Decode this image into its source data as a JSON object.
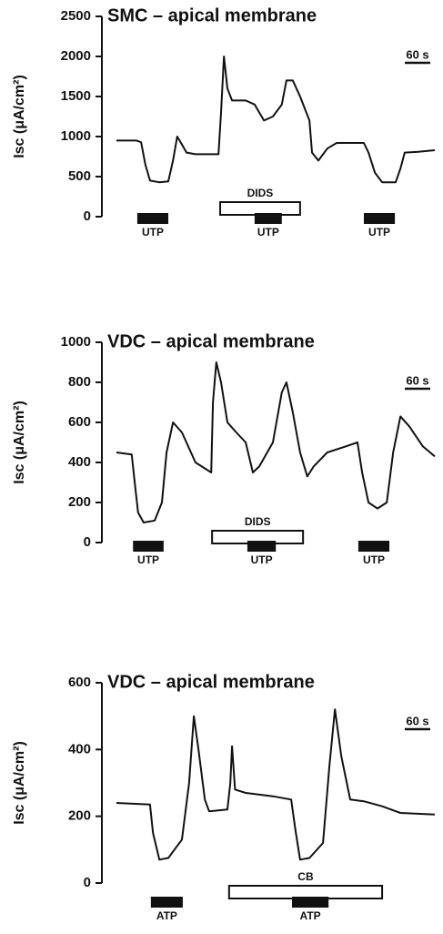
{
  "chart_data": [
    {
      "type": "line",
      "title": "SMC – apical membrane",
      "y_label": "Isc (μA/cm²)",
      "color": "#111111",
      "xlim": [
        0,
        750
      ],
      "ylim": [
        0,
        2500
      ],
      "yticks": [
        0,
        500,
        1000,
        1500,
        2000,
        2500
      ],
      "x": [
        0,
        47,
        58,
        68,
        79,
        101,
        122,
        133,
        143,
        154,
        165,
        186,
        240,
        246,
        253,
        261,
        272,
        304,
        325,
        347,
        368,
        389,
        400,
        415,
        432,
        454,
        460,
        475,
        496,
        518,
        582,
        593,
        608,
        625,
        657,
        668,
        678,
        710,
        749
      ],
      "values": [
        950,
        950,
        930,
        650,
        450,
        430,
        440,
        700,
        1000,
        900,
        800,
        780,
        780,
        1300,
        2000,
        1600,
        1450,
        1450,
        1400,
        1200,
        1250,
        1400,
        1700,
        1700,
        1500,
        1200,
        800,
        700,
        850,
        920,
        920,
        800,
        550,
        430,
        430,
        600,
        800,
        810,
        830
      ],
      "annotations": [
        {
          "label": "UTP",
          "start": 49,
          "end": 122,
          "style": "filled"
        },
        {
          "label": "DIDS",
          "start": 244,
          "end": 432,
          "style": "open"
        },
        {
          "label": "UTP",
          "start": 325,
          "end": 389,
          "style": "filled"
        },
        {
          "label": "UTP",
          "start": 582,
          "end": 655,
          "style": "filled"
        }
      ],
      "scale_bar": {
        "label": "60 s",
        "length": 60
      }
    },
    {
      "type": "line",
      "title": "VDC – apical membrane",
      "y_label": "Isc (μA/cm²)",
      "color": "#111111",
      "xlim": [
        0,
        750
      ],
      "ylim": [
        0,
        1000
      ],
      "yticks": [
        0,
        200,
        400,
        600,
        800,
        1000
      ],
      "x": [
        0,
        36,
        43,
        51,
        64,
        90,
        107,
        118,
        133,
        154,
        186,
        223,
        227,
        235,
        246,
        261,
        282,
        304,
        321,
        336,
        368,
        389,
        400,
        415,
        432,
        449,
        464,
        496,
        539,
        567,
        578,
        593,
        614,
        636,
        651,
        668,
        689,
        721,
        749
      ],
      "values": [
        450,
        440,
        300,
        150,
        100,
        110,
        200,
        450,
        600,
        550,
        400,
        350,
        700,
        900,
        800,
        600,
        550,
        500,
        350,
        380,
        500,
        750,
        800,
        650,
        450,
        330,
        380,
        450,
        480,
        500,
        350,
        200,
        170,
        200,
        450,
        630,
        580,
        480,
        430
      ],
      "annotations": [
        {
          "label": "UTP",
          "start": 39,
          "end": 111,
          "style": "filled"
        },
        {
          "label": "DIDS",
          "start": 225,
          "end": 439,
          "style": "open"
        },
        {
          "label": "UTP",
          "start": 308,
          "end": 375,
          "style": "filled"
        },
        {
          "label": "UTP",
          "start": 569,
          "end": 642,
          "style": "filled"
        }
      ],
      "scale_bar": {
        "label": "60 s",
        "length": 60
      }
    },
    {
      "type": "line",
      "title": "VDC – apical membrane",
      "y_label": "Isc (μA/cm²)",
      "color": "#111111",
      "xlim": [
        0,
        750
      ],
      "ylim": [
        0,
        600
      ],
      "yticks": [
        0,
        200,
        400,
        600
      ],
      "x": [
        0,
        79,
        86,
        101,
        122,
        154,
        171,
        182,
        193,
        208,
        218,
        261,
        268,
        272,
        279,
        304,
        368,
        411,
        421,
        432,
        454,
        486,
        501,
        514,
        529,
        550,
        582,
        625,
        668,
        749
      ],
      "values": [
        240,
        235,
        150,
        70,
        75,
        130,
        300,
        500,
        400,
        250,
        215,
        220,
        300,
        410,
        280,
        270,
        260,
        250,
        160,
        70,
        75,
        120,
        350,
        520,
        380,
        250,
        245,
        230,
        210,
        205
      ],
      "annotations": [
        {
          "label": "ATP",
          "start": 81,
          "end": 156,
          "style": "filled"
        },
        {
          "label": "CB",
          "start": 265,
          "end": 625,
          "style": "open"
        },
        {
          "label": "ATP",
          "start": 413,
          "end": 499,
          "style": "filled"
        }
      ],
      "scale_bar": {
        "label": "60 s",
        "length": 60
      }
    }
  ]
}
